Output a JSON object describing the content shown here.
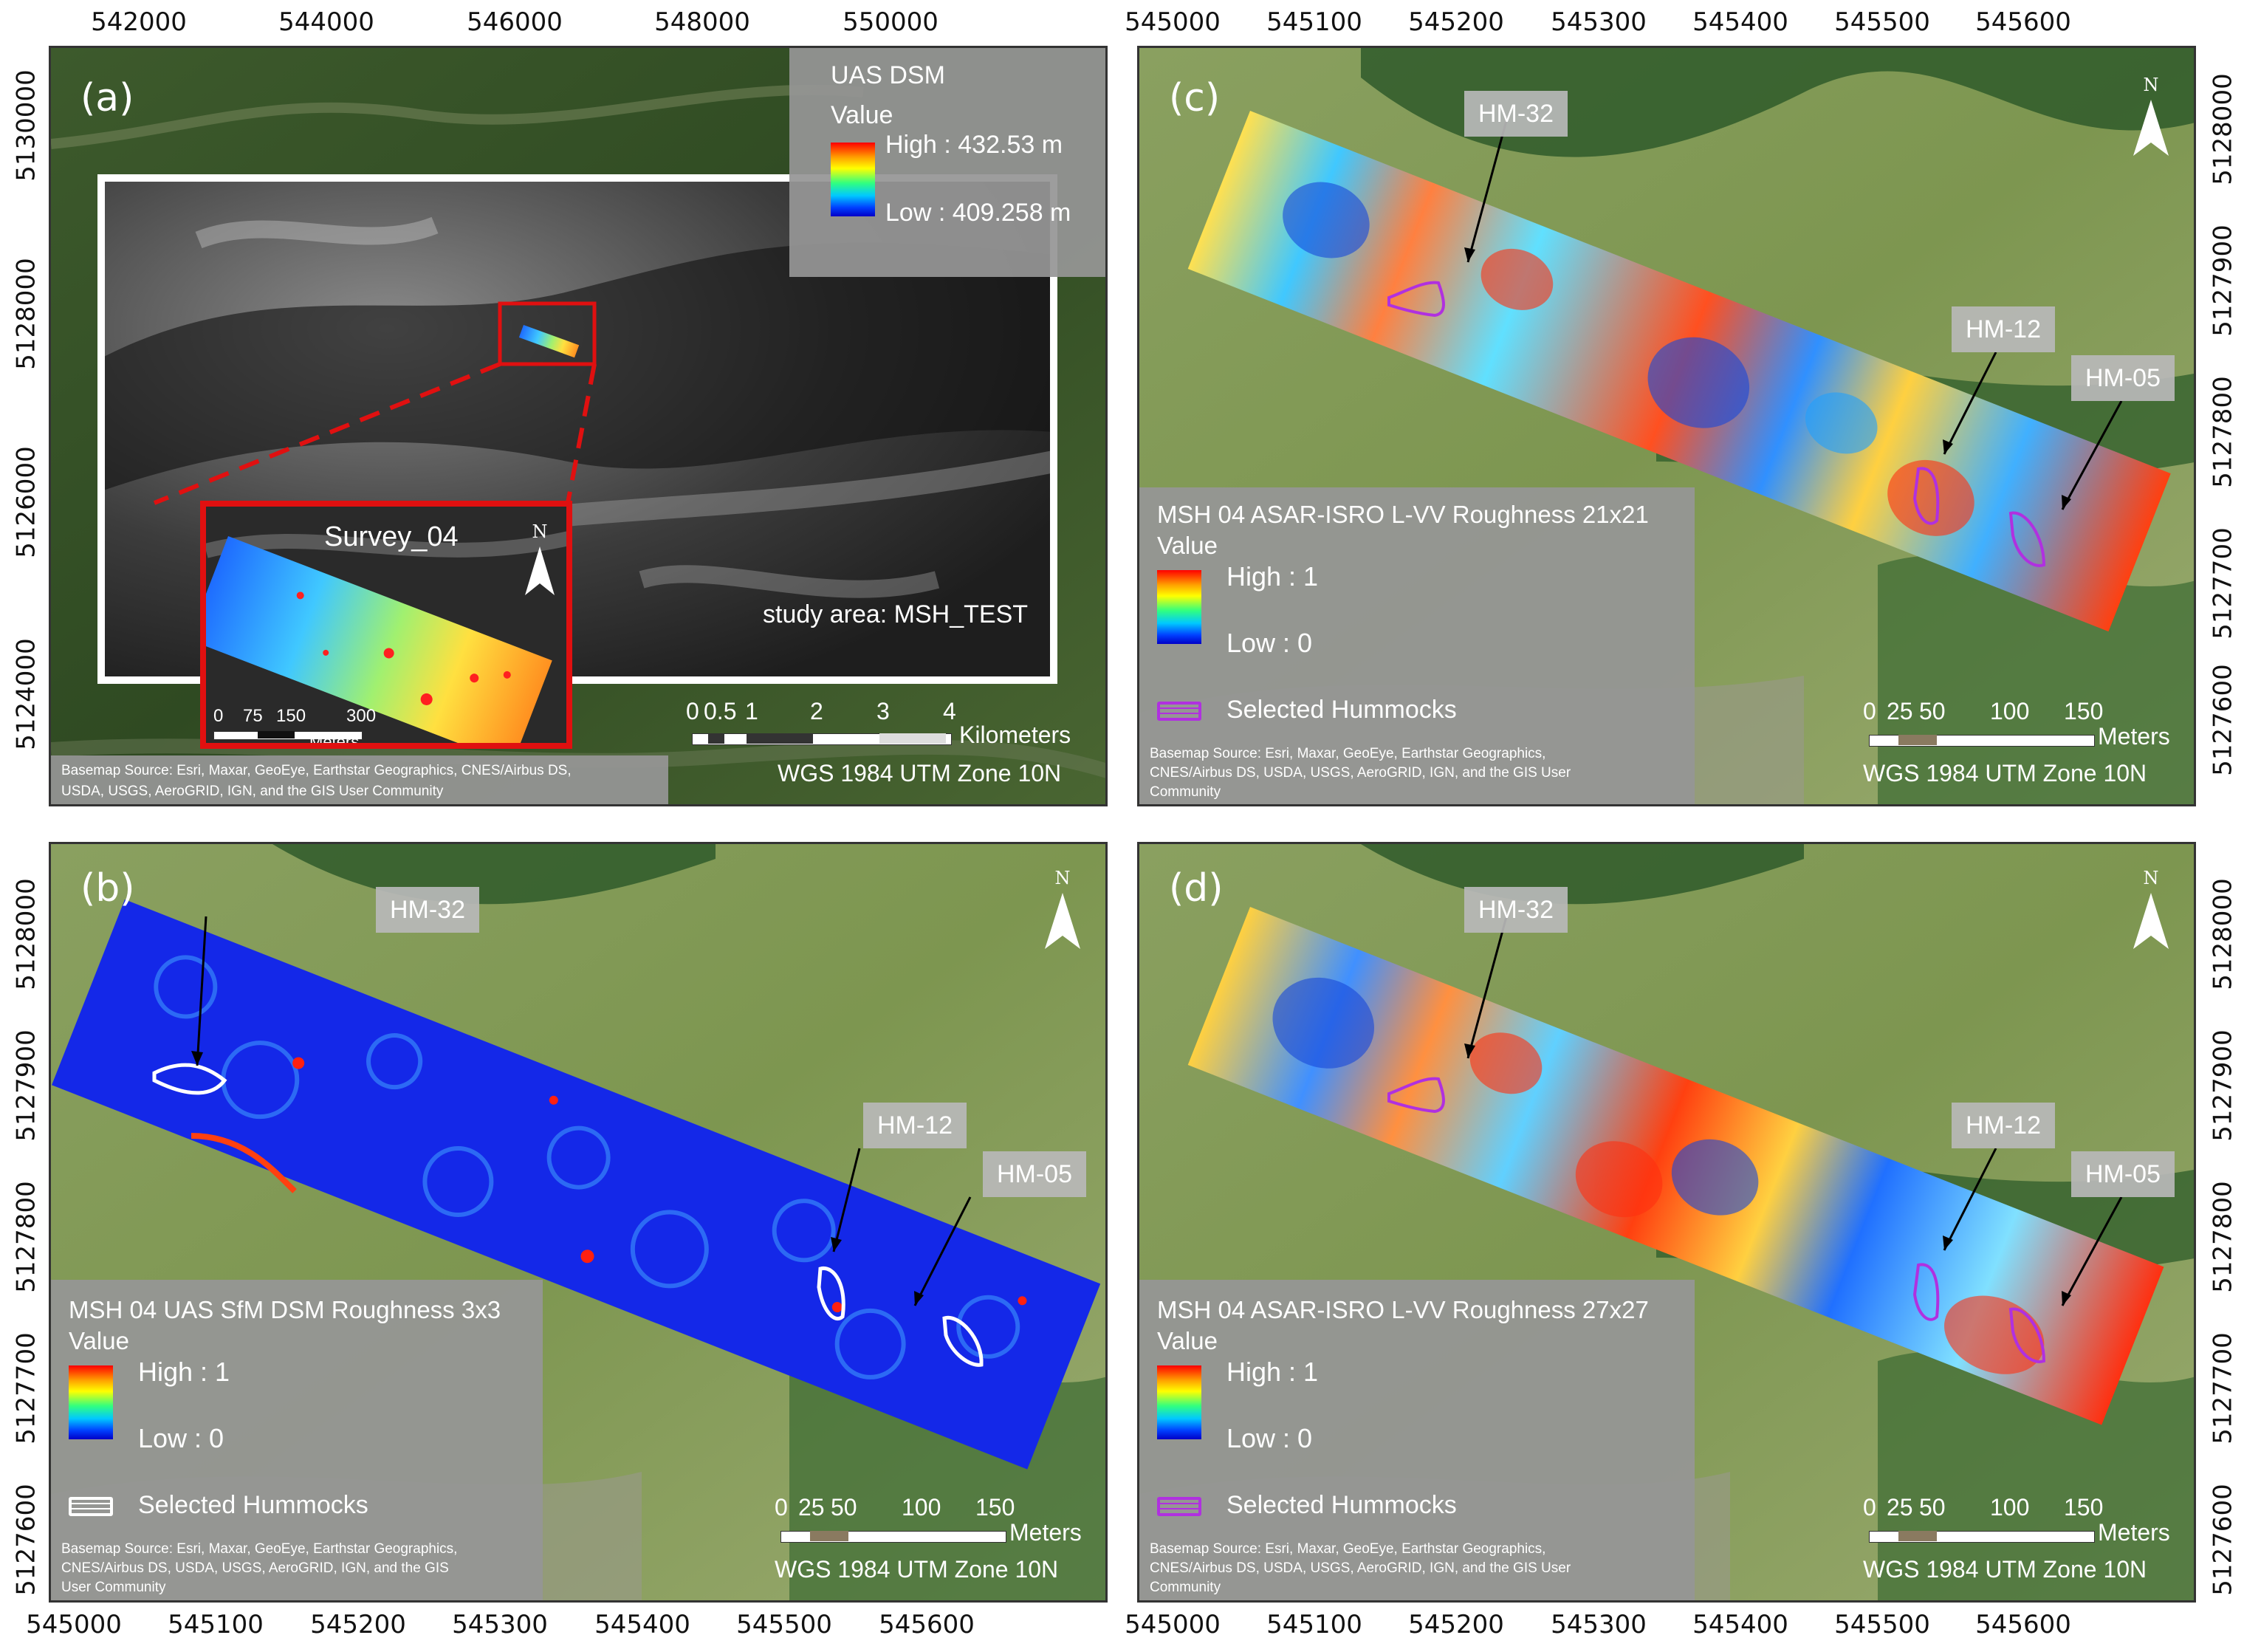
{
  "axes": {
    "panel_a_top": [
      "542000",
      "544000",
      "546000",
      "548000",
      "550000"
    ],
    "panel_a_left": [
      "5130000",
      "5128000",
      "5126000",
      "5124000"
    ],
    "panel_cd_top": [
      "545000",
      "545100",
      "545200",
      "545300",
      "545400",
      "545500",
      "545600"
    ],
    "panel_cd_right_c": [
      "5128000",
      "5127900",
      "5127800",
      "5127700",
      "5127600"
    ],
    "panel_cd_right_d": [
      "5128000",
      "5127900",
      "5127800",
      "5127700",
      "5127600"
    ],
    "panel_b_left": [
      "5128000",
      "5127900",
      "5127800",
      "5127700",
      "5127600"
    ],
    "panel_b_bottom": [
      "545000",
      "545100",
      "545200",
      "545300",
      "545400",
      "545500",
      "545600"
    ],
    "panel_d_bottom": [
      "545000",
      "545100",
      "545200",
      "545300",
      "545400",
      "545500",
      "545600"
    ]
  },
  "panel_a": {
    "label": "(a)",
    "legend_title": "UAS DSM",
    "legend_value": "Value",
    "high": "High : 432.53 m",
    "low": "Low : 409.258 m",
    "inset_title": "Survey_04",
    "inset_scale": [
      "0",
      "75",
      "150",
      "300"
    ],
    "inset_scale_unit": "Meters",
    "study_area": "study area: MSH_TEST",
    "scale_ticks": [
      "0",
      "0.5",
      "1",
      "2",
      "3",
      "4"
    ],
    "scale_unit": "Kilometers",
    "crs": "WGS 1984 UTM Zone 10N",
    "basemap": "Basemap Source: Esri, Maxar, GeoEye, Earthstar Geographics, CNES/Airbus DS,",
    "basemap2": "USDA, USGS, AeroGRID, IGN, and the GIS User Community"
  },
  "panel_b": {
    "label": "(b)",
    "legend_title": "MSH 04 UAS SfM DSM Roughness 3x3",
    "legend_value": "Value",
    "high": "High : 1",
    "low": "Low : 0",
    "hummocks": "Selected Hummocks",
    "scale_ticks": [
      "0",
      "25",
      "50",
      "100",
      "150"
    ],
    "scale_unit": "Meters",
    "crs": "WGS 1984 UTM Zone 10N",
    "basemap": "Basemap Source: Esri, Maxar, GeoEye, Earthstar Geographics,",
    "basemap2": "CNES/Airbus DS, USDA, USGS, AeroGRID, IGN, and the GIS",
    "basemap3": "User Community",
    "callouts": [
      "HM-32",
      "HM-12",
      "HM-05"
    ]
  },
  "panel_c": {
    "label": "(c)",
    "legend_title": "MSH 04 ASAR-ISRO L-VV Roughness 21x21",
    "legend_value": "Value",
    "high": "High : 1",
    "low": "Low : 0",
    "hummocks": "Selected Hummocks",
    "scale_ticks": [
      "0",
      "25",
      "50",
      "100",
      "150"
    ],
    "scale_unit": "Meters",
    "crs": "WGS 1984 UTM Zone 10N",
    "basemap": "Basemap Source: Esri, Maxar, GeoEye, Earthstar Geographics,",
    "basemap2": "CNES/Airbus DS, USDA, USGS, AeroGRID, IGN, and the GIS User",
    "basemap3": "Community",
    "callouts": [
      "HM-32",
      "HM-12",
      "HM-05"
    ]
  },
  "panel_d": {
    "label": "(d)",
    "legend_title": "MSH 04 ASAR-ISRO L-VV Roughness 27x27",
    "legend_value": "Value",
    "high": "High : 1",
    "low": "Low : 0",
    "hummocks": "Selected Hummocks",
    "scale_ticks": [
      "0",
      "25",
      "50",
      "100",
      "150"
    ],
    "scale_unit": "Meters",
    "crs": "WGS 1984 UTM Zone 10N",
    "basemap": "Basemap Source: Esri, Maxar, GeoEye, Earthstar Geographics,",
    "basemap2": "CNES/Airbus DS, USDA, USGS, AeroGRID, IGN, and the GIS User",
    "basemap3": "Community",
    "callouts": [
      "HM-32",
      "HM-12",
      "HM-05"
    ]
  },
  "north_letter": "N",
  "colors": {
    "hummock_white": "#ffffff",
    "hummock_purple": "#b030e0",
    "inset_frame": "#e01010",
    "legend_grey": "#969696"
  }
}
